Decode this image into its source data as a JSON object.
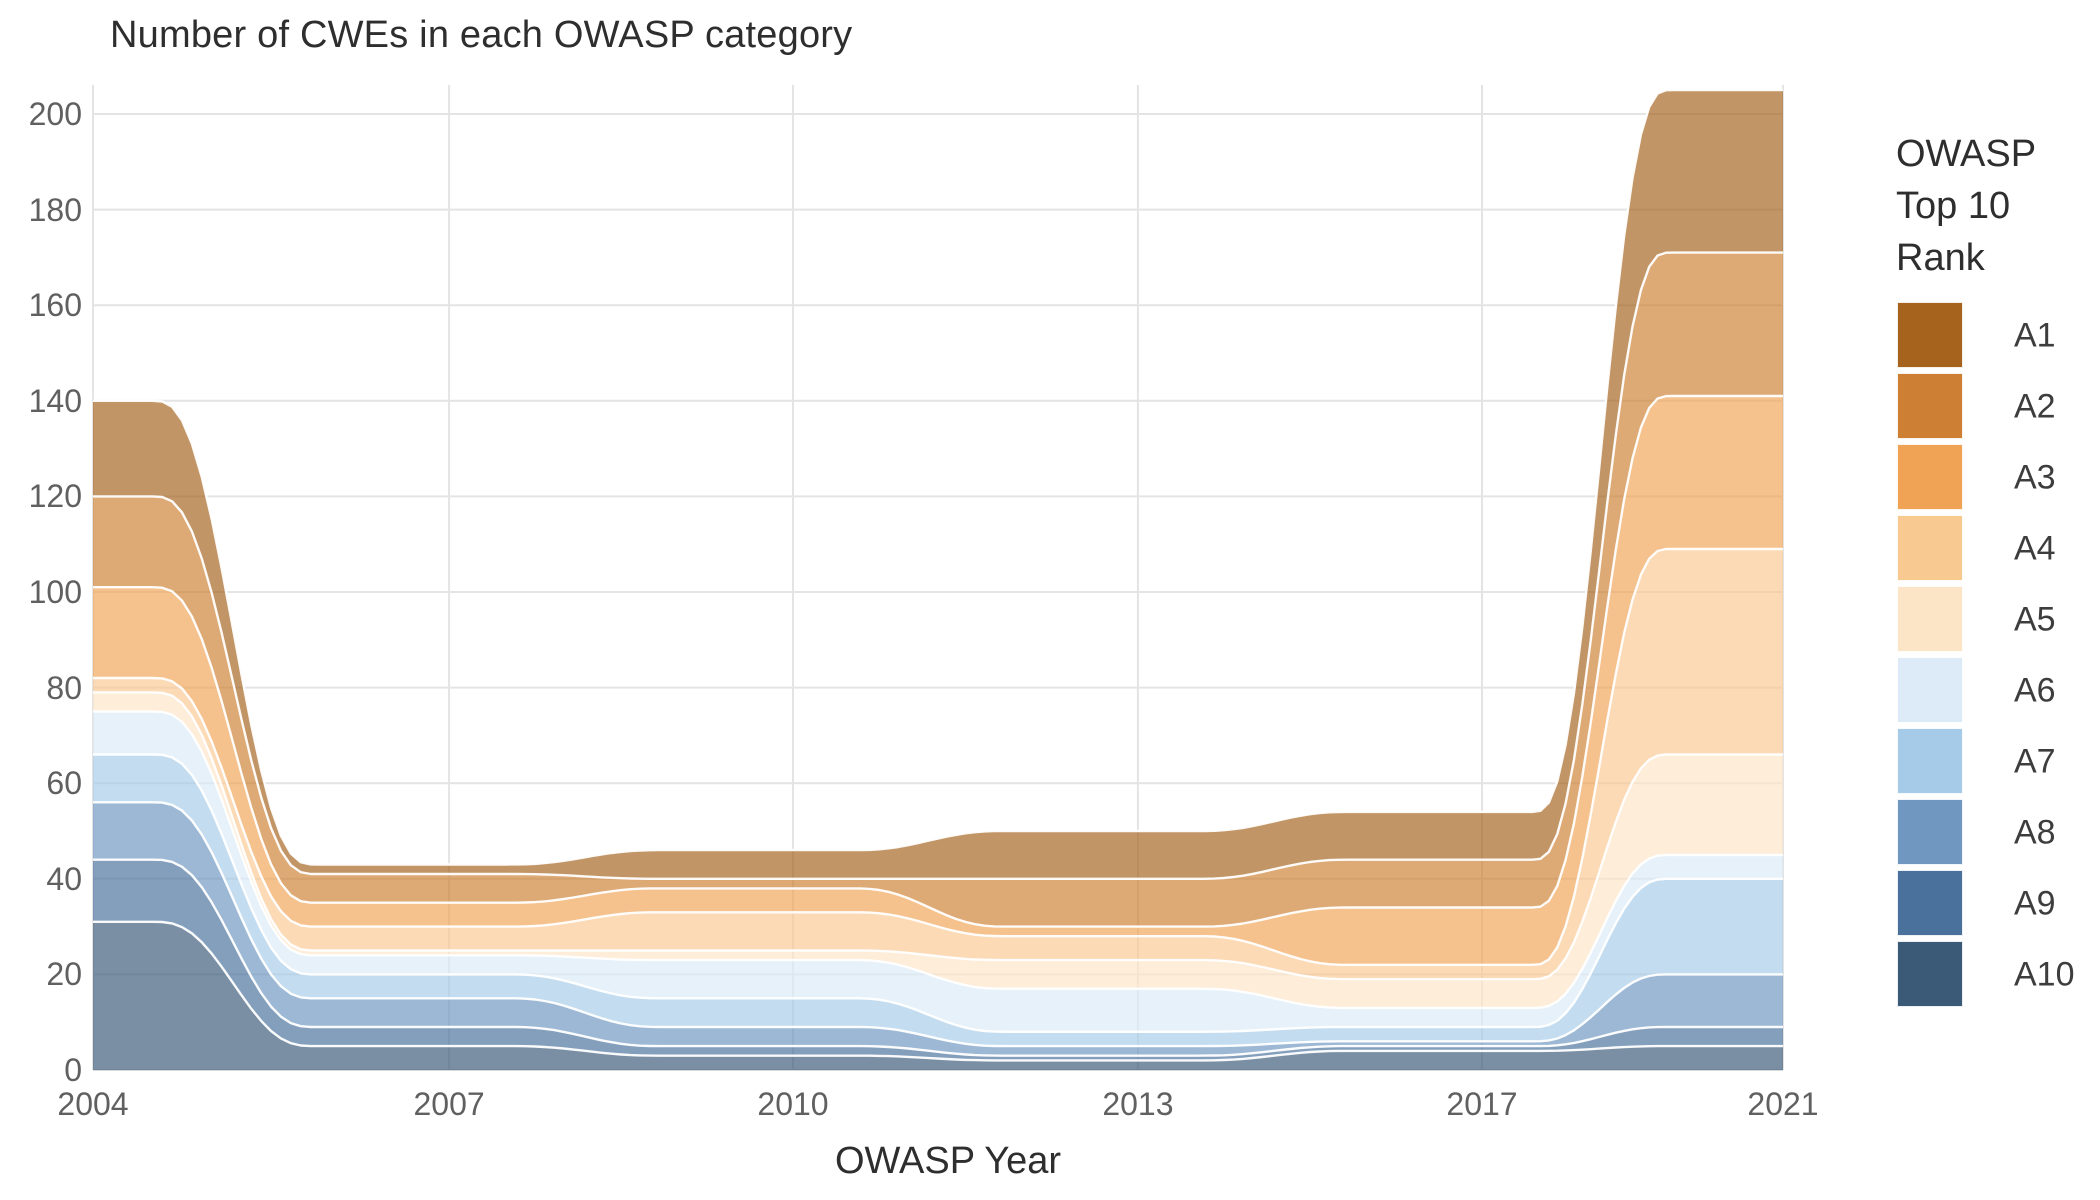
{
  "title": "Number of CWEs in each OWASP category",
  "x_axis": {
    "label": "OWASP Year",
    "ticks": [
      "2004",
      "2007",
      "2010",
      "2013",
      "2017",
      "2021"
    ]
  },
  "y_axis": {
    "ticks": [
      "0",
      "20",
      "40",
      "60",
      "80",
      "100",
      "120",
      "140",
      "160",
      "180",
      "200"
    ]
  },
  "legend": {
    "title_lines": [
      "OWASP",
      "Top 10",
      "Rank"
    ],
    "items": [
      {
        "label": "A1",
        "color": "#a5631d"
      },
      {
        "label": "A2",
        "color": "#cd8033"
      },
      {
        "label": "A3",
        "color": "#f0a355"
      },
      {
        "label": "A4",
        "color": "#f9c992"
      },
      {
        "label": "A5",
        "color": "#fce5c7"
      },
      {
        "label": "A6",
        "color": "#dcebf7"
      },
      {
        "label": "A7",
        "color": "#a6cbe8"
      },
      {
        "label": "A8",
        "color": "#6f97c0"
      },
      {
        "label": "A9",
        "color": "#49719c"
      },
      {
        "label": "A10",
        "color": "#3b5a78"
      }
    ]
  },
  "chart_data": {
    "type": "area",
    "stacked": true,
    "title": "Number of CWEs in each OWASP category",
    "xlabel": "OWASP Year",
    "ylabel": "",
    "x": [
      2004,
      2007,
      2010,
      2013,
      2017,
      2021
    ],
    "ylim": [
      0,
      206
    ],
    "y_tick_step": 20,
    "grid": true,
    "legend_position": "right",
    "legend_title": "OWASP Top 10 Rank",
    "series": [
      {
        "name": "A1",
        "color": "#a5631d",
        "values": [
          20,
          2,
          6,
          10,
          10,
          34
        ]
      },
      {
        "name": "A2",
        "color": "#cd8033",
        "values": [
          19,
          6,
          2,
          10,
          10,
          30
        ]
      },
      {
        "name": "A3",
        "color": "#f0a355",
        "values": [
          19,
          5,
          5,
          2,
          12,
          32
        ]
      },
      {
        "name": "A4",
        "color": "#f9c992",
        "values": [
          3,
          5,
          8,
          5,
          3,
          43
        ]
      },
      {
        "name": "A5",
        "color": "#fce5c7",
        "values": [
          4,
          1,
          2,
          6,
          6,
          21
        ]
      },
      {
        "name": "A6",
        "color": "#dcebf7",
        "values": [
          9,
          4,
          8,
          9,
          4,
          5
        ]
      },
      {
        "name": "A7",
        "color": "#a6cbe8",
        "values": [
          10,
          5,
          6,
          3,
          3,
          20
        ]
      },
      {
        "name": "A8",
        "color": "#6f97c0",
        "values": [
          12,
          6,
          4,
          2,
          1,
          11
        ]
      },
      {
        "name": "A9",
        "color": "#49719c",
        "values": [
          13,
          4,
          2,
          1,
          1,
          4
        ]
      },
      {
        "name": "A10",
        "color": "#3b5a78",
        "values": [
          31,
          5,
          3,
          2,
          4,
          5
        ]
      }
    ]
  }
}
